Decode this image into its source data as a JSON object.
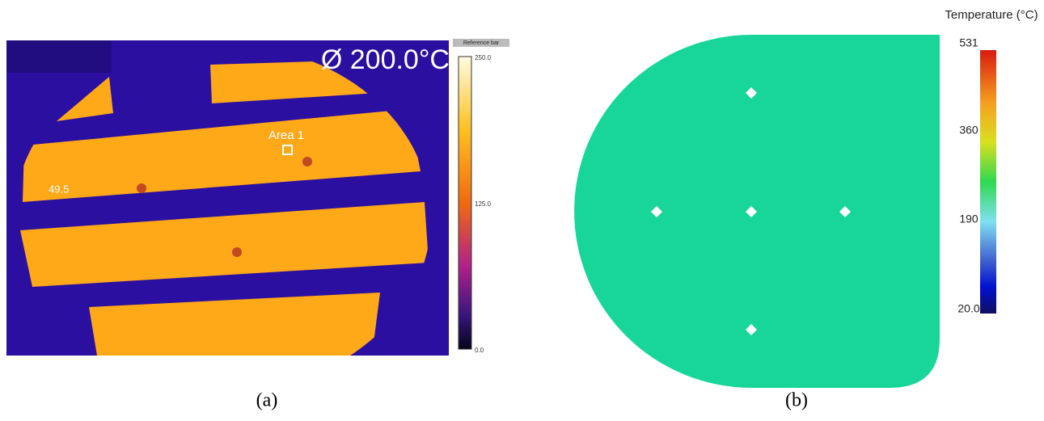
{
  "panel_a": {
    "overlay_text": "Ø  200.0°C",
    "colorbar_title": "Reference bar",
    "colorbar_labels": [
      "250.0",
      "125.0",
      "0.0"
    ],
    "area_label": "Area 1",
    "spot_value": "49.5",
    "caption": "(a)"
  },
  "panel_b": {
    "colorbar_title": "Temperature (°C)",
    "colorbar_labels": [
      "531",
      "360",
      "190",
      "20.0"
    ],
    "caption": "(b)"
  }
}
